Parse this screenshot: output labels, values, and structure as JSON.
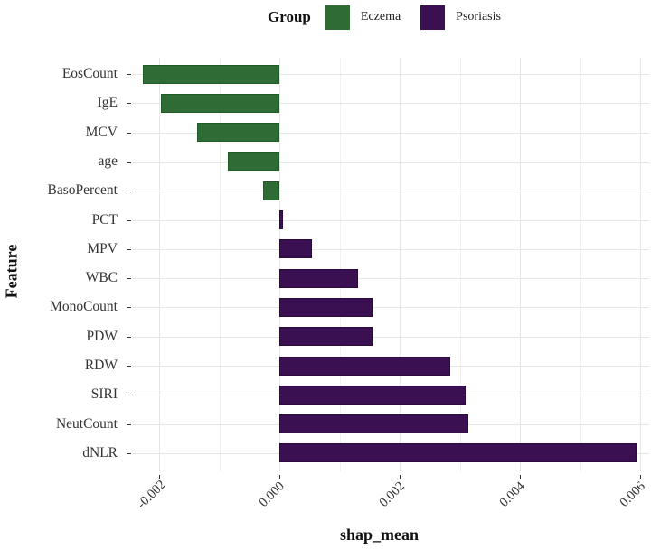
{
  "legend": {
    "title": "Group",
    "items": [
      {
        "label": "Eczema",
        "color": "#2e6b35"
      },
      {
        "label": "Psoriasis",
        "color": "#3a1052"
      }
    ]
  },
  "axes": {
    "xlabel": "shap_mean",
    "ylabel": "Feature",
    "xticks": [
      "-0.002",
      "0.000",
      "0.002",
      "0.004",
      "0.006"
    ]
  },
  "chart_data": {
    "type": "bar",
    "orientation": "horizontal",
    "title": "",
    "xlabel": "shap_mean",
    "ylabel": "Feature",
    "xlim": [
      -0.0025,
      0.0061
    ],
    "legend_title": "Group",
    "legend_position": "top",
    "grid": true,
    "categories": [
      "EosCount",
      "IgE",
      "MCV",
      "age",
      "BasoPercent",
      "PCT",
      "MPV",
      "WBC",
      "MonoCount",
      "PDW",
      "RDW",
      "SIRI",
      "NeutCount",
      "dNLR"
    ],
    "values": [
      -0.00227,
      -0.00197,
      -0.00137,
      -0.00086,
      -0.00027,
      6e-05,
      0.00054,
      0.00131,
      0.00155,
      0.00155,
      0.00284,
      0.0031,
      0.00314,
      0.00594
    ],
    "groups": [
      "Eczema",
      "Eczema",
      "Eczema",
      "Eczema",
      "Eczema",
      "Psoriasis",
      "Psoriasis",
      "Psoriasis",
      "Psoriasis",
      "Psoriasis",
      "Psoriasis",
      "Psoriasis",
      "Psoriasis",
      "Psoriasis"
    ],
    "colors": {
      "Eczema": "#2e6b35",
      "Psoriasis": "#3a1052"
    }
  }
}
